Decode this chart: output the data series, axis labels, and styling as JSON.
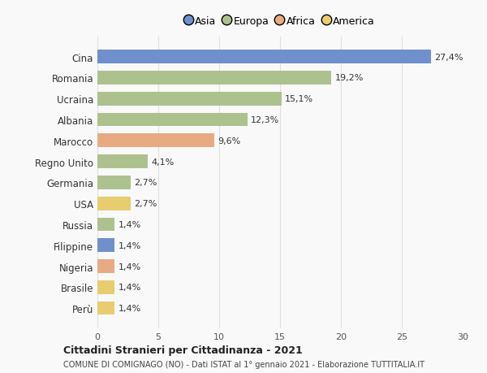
{
  "categories": [
    "Cina",
    "Romania",
    "Ucraina",
    "Albania",
    "Marocco",
    "Regno Unito",
    "Germania",
    "USA",
    "Russia",
    "Filippine",
    "Nigeria",
    "Brasile",
    "Perù"
  ],
  "values": [
    27.4,
    19.2,
    15.1,
    12.3,
    9.6,
    4.1,
    2.7,
    2.7,
    1.4,
    1.4,
    1.4,
    1.4,
    1.4
  ],
  "labels": [
    "27,4%",
    "19,2%",
    "15,1%",
    "12,3%",
    "9,6%",
    "4,1%",
    "2,7%",
    "2,7%",
    "1,4%",
    "1,4%",
    "1,4%",
    "1,4%",
    "1,4%"
  ],
  "colors": [
    "#7090cc",
    "#adc18e",
    "#adc18e",
    "#adc18e",
    "#e8aa82",
    "#adc18e",
    "#adc18e",
    "#e8cc70",
    "#adc18e",
    "#7090cc",
    "#e8aa82",
    "#e8cc70",
    "#e8cc70"
  ],
  "legend": [
    {
      "label": "Asia",
      "color": "#7090cc"
    },
    {
      "label": "Europa",
      "color": "#adc18e"
    },
    {
      "label": "Africa",
      "color": "#e8aa82"
    },
    {
      "label": "America",
      "color": "#e8cc70"
    }
  ],
  "xlim": [
    0,
    30
  ],
  "xticks": [
    0,
    5,
    10,
    15,
    20,
    25,
    30
  ],
  "title": "Cittadini Stranieri per Cittadinanza - 2021",
  "subtitle": "COMUNE DI COMIGNAGO (NO) - Dati ISTAT al 1° gennaio 2021 - Elaborazione TUTTITALIA.IT",
  "background_color": "#f9f9f9",
  "grid_color": "#e0e0e0"
}
